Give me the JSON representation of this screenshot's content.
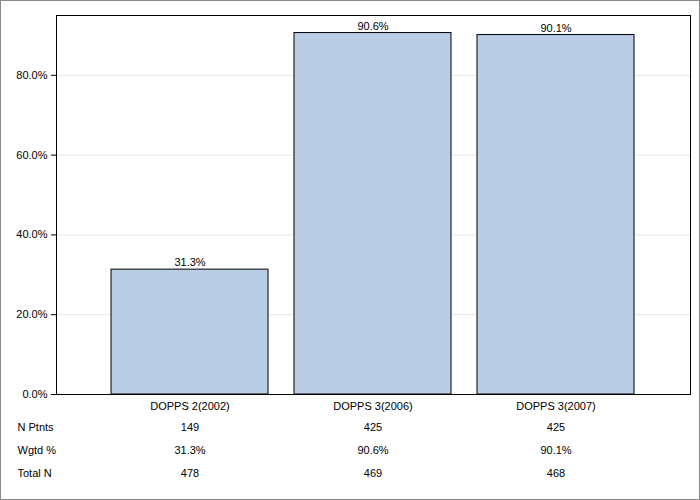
{
  "chart_data": {
    "type": "bar",
    "categories": [
      "DOPPS 2(2002)",
      "DOPPS 3(2006)",
      "DOPPS 3(2007)"
    ],
    "values": [
      31.3,
      90.6,
      90.1
    ],
    "value_labels": [
      "31.3%",
      "90.6%",
      "90.1%"
    ],
    "data_labels": true,
    "color": "#b9cde5",
    "ylim": [
      0,
      95
    ],
    "yticks": [
      {
        "value": 0,
        "label": "0.0%"
      },
      {
        "value": 20,
        "label": "20.0%"
      },
      {
        "value": 40,
        "label": "40.0%"
      },
      {
        "value": 60,
        "label": "60.0%"
      },
      {
        "value": 80,
        "label": "80.0%"
      }
    ],
    "grid": true,
    "table_rows": [
      {
        "name": "N Ptnts",
        "values": [
          149,
          425,
          425
        ]
      },
      {
        "name": "Wgtd %",
        "values": [
          "31.3%",
          "90.6%",
          "90.1%"
        ]
      },
      {
        "name": "Total N",
        "values": [
          478,
          469,
          468
        ]
      }
    ]
  }
}
